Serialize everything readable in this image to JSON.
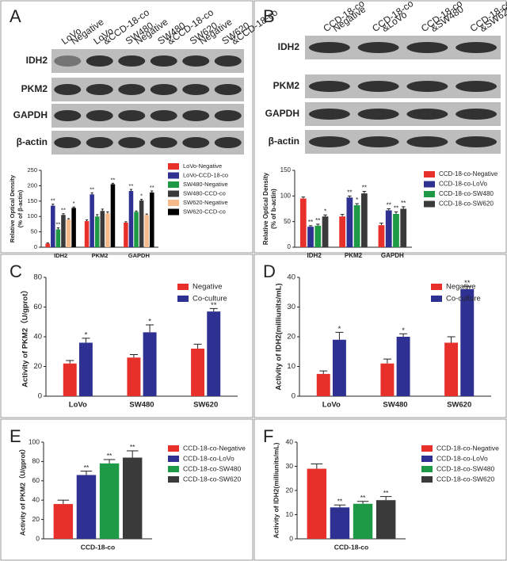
{
  "blots": [
    {
      "panel": "A",
      "lanes": [
        [
          "LoVo",
          "Negative"
        ],
        [
          "LoVo",
          "&CCD-18-co"
        ],
        [
          "SW480",
          "Negative"
        ],
        [
          "SW480",
          "&CCD-18-co"
        ],
        [
          "SW620",
          "Negative"
        ],
        [
          "SW620",
          "&CCD-18-co"
        ]
      ],
      "rows": [
        "IDH2",
        "PKM2",
        "GAPDH",
        "β-actin"
      ]
    },
    {
      "panel": "B",
      "lanes": [
        [
          "CCD-18-co",
          "Negative"
        ],
        [
          "CCD-18-co",
          "&LoVo"
        ],
        [
          "CCD-18-co",
          "&SW480"
        ],
        [
          "CCD-18-co",
          "&SW620"
        ]
      ],
      "rows": [
        "IDH2",
        "PKM2",
        "GAPDH",
        "β-actin"
      ]
    }
  ],
  "chart_data": [
    {
      "type": "bar",
      "ylabel": [
        "Relative Optical Density",
        "(% of β-actin)"
      ],
      "categories": [
        "IDH2",
        "PKM2",
        "GAPDH"
      ],
      "ylim": [
        0,
        250
      ],
      "yticks": [
        0,
        50,
        100,
        150,
        200,
        250
      ],
      "series": [
        {
          "name": "LoVo-Negative",
          "color": "#e8302a",
          "values": [
            12,
            85,
            80
          ],
          "errors": [
            2,
            4,
            3
          ],
          "marks": [
            null,
            null,
            null
          ]
        },
        {
          "name": "LoVo-CCD-18-co",
          "color": "#2e3192",
          "values": [
            135,
            172,
            183
          ],
          "errors": [
            5,
            5,
            5
          ],
          "marks": [
            "**",
            "**",
            "**"
          ]
        },
        {
          "name": "SW480-Negative",
          "color": "#1e9a46",
          "values": [
            58,
            100,
            115
          ],
          "errors": [
            5,
            6,
            3
          ],
          "marks": [
            "**",
            null,
            null
          ]
        },
        {
          "name": "SW480-CCD-co",
          "color": "#3a3a3a",
          "values": [
            105,
            118,
            152
          ],
          "errors": [
            4,
            6,
            4
          ],
          "marks": [
            "**",
            null,
            "*"
          ]
        },
        {
          "name": "SW620-Negative",
          "color": "#f5b98a",
          "values": [
            90,
            110,
            105
          ],
          "errors": [
            3,
            5,
            3
          ],
          "marks": [
            null,
            null,
            null
          ]
        },
        {
          "name": "SW620-CCD-co",
          "color": "#000000",
          "values": [
            128,
            205,
            178
          ],
          "errors": [
            3,
            3,
            5
          ],
          "marks": [
            "*",
            "**",
            "**"
          ]
        }
      ]
    },
    {
      "type": "bar",
      "ylabel": [
        "Relative Optical Density",
        "(% of b-actin)"
      ],
      "categories": [
        "IDH2",
        "PKM2",
        "GAPDH"
      ],
      "ylim": [
        0,
        150
      ],
      "yticks": [
        0,
        50,
        100,
        150
      ],
      "series": [
        {
          "name": "CCD-18-co-Negative",
          "color": "#e8302a",
          "values": [
            95,
            60,
            43
          ],
          "errors": [
            3,
            4,
            4
          ],
          "marks": [
            null,
            null,
            null
          ]
        },
        {
          "name": "CCD-18-co-LoVo",
          "color": "#2e3192",
          "values": [
            40,
            97,
            72
          ],
          "errors": [
            2,
            3,
            3
          ],
          "marks": [
            "**",
            "**",
            "**"
          ]
        },
        {
          "name": "CCD-18-co-SW480",
          "color": "#1e9a46",
          "values": [
            42,
            82,
            65
          ],
          "errors": [
            3,
            3,
            4
          ],
          "marks": [
            "**",
            "*",
            "**"
          ]
        },
        {
          "name": "CCD-18-co-SW620",
          "color": "#3a3a3a",
          "values": [
            60,
            105,
            75
          ],
          "errors": [
            3,
            4,
            4
          ],
          "marks": [
            "*",
            "**",
            "**"
          ]
        }
      ]
    },
    {
      "type": "bar",
      "panel": "C",
      "ylabel": [
        "Activity of PKM2（U/gprot）"
      ],
      "categories": [
        "LoVo",
        "SW480",
        "SW620"
      ],
      "ylim": [
        0,
        80
      ],
      "yticks": [
        0,
        20,
        40,
        60,
        80
      ],
      "series": [
        {
          "name": "Negative",
          "color": "#e8302a",
          "values": [
            22,
            26,
            32
          ],
          "errors": [
            2,
            2,
            3
          ],
          "marks": [
            null,
            null,
            null
          ]
        },
        {
          "name": "Co-culture",
          "color": "#2e3192",
          "values": [
            36,
            43,
            57
          ],
          "errors": [
            3,
            5,
            2
          ],
          "marks": [
            "*",
            "*",
            "**"
          ]
        }
      ]
    },
    {
      "type": "bar",
      "panel": "D",
      "ylabel": [
        "Activity of  IDH2(milliunits/mL)"
      ],
      "categories": [
        "LoVo",
        "SW480",
        "SW620"
      ],
      "ylim": [
        0,
        40
      ],
      "yticks": [
        0,
        10,
        20,
        30,
        40
      ],
      "series": [
        {
          "name": "Negative",
          "color": "#e8302a",
          "values": [
            7.5,
            11,
            18
          ],
          "errors": [
            1,
            1.5,
            2
          ],
          "marks": [
            null,
            null,
            null
          ]
        },
        {
          "name": "Co-culture",
          "color": "#2e3192",
          "values": [
            19,
            20,
            36
          ],
          "errors": [
            2.5,
            1,
            1
          ],
          "marks": [
            "*",
            "*",
            "**"
          ]
        }
      ]
    },
    {
      "type": "bar",
      "panel": "E",
      "ylabel": [
        "Activity of PKM2（U/gprot）"
      ],
      "categories": [
        "CCD-18-co"
      ],
      "ylim": [
        0,
        100
      ],
      "yticks": [
        0,
        20,
        40,
        60,
        80,
        100
      ],
      "series": [
        {
          "name": "CCD-18-co-Negative",
          "color": "#e8302a",
          "values": [
            36
          ],
          "errors": [
            4
          ],
          "marks": [
            null
          ]
        },
        {
          "name": "CCD-18-co-LoVo",
          "color": "#2e3192",
          "values": [
            66
          ],
          "errors": [
            4
          ],
          "marks": [
            "**"
          ]
        },
        {
          "name": "CCD-18-co-SW480",
          "color": "#1e9a46",
          "values": [
            78
          ],
          "errors": [
            4
          ],
          "marks": [
            "**"
          ]
        },
        {
          "name": "CCD-18-co-SW620",
          "color": "#3a3a3a",
          "values": [
            84
          ],
          "errors": [
            7
          ],
          "marks": [
            "**"
          ]
        }
      ]
    },
    {
      "type": "bar",
      "panel": "F",
      "ylabel": [
        "Activity of IDH2(milliunits/mL)"
      ],
      "categories": [
        "CCD-18-co"
      ],
      "ylim": [
        0,
        40
      ],
      "yticks": [
        0,
        10,
        20,
        30,
        40
      ],
      "series": [
        {
          "name": "CCD-18-co-Negative",
          "color": "#e8302a",
          "values": [
            29
          ],
          "errors": [
            2
          ],
          "marks": [
            null
          ]
        },
        {
          "name": "CCD-18-co-LoVo",
          "color": "#2e3192",
          "values": [
            13
          ],
          "errors": [
            1
          ],
          "marks": [
            "**"
          ]
        },
        {
          "name": "CCD-18-co-SW480",
          "color": "#1e9a46",
          "values": [
            14.5
          ],
          "errors": [
            1
          ],
          "marks": [
            "**"
          ]
        },
        {
          "name": "CCD-18-co-SW620",
          "color": "#3a3a3a",
          "values": [
            16
          ],
          "errors": [
            1.5
          ],
          "marks": [
            "**"
          ]
        }
      ]
    }
  ]
}
